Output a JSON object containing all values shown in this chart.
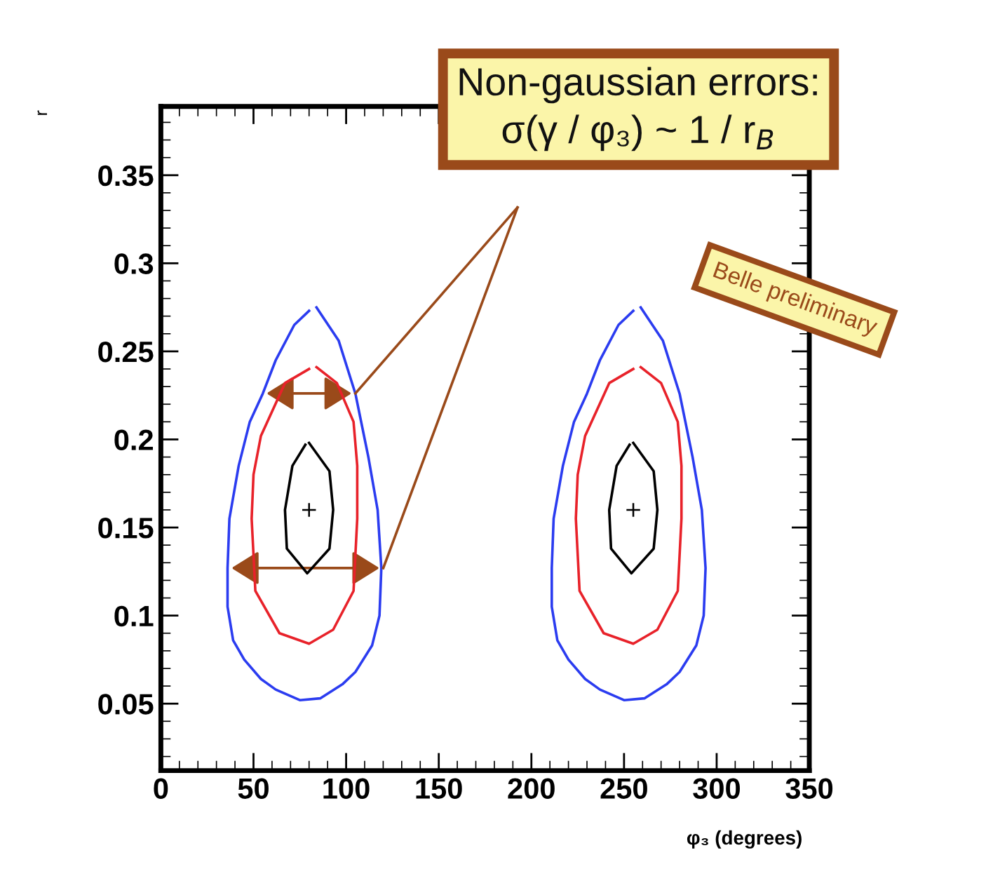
{
  "chart_data": {
    "type": "line",
    "xlabel": "φ₃ (degrees)",
    "ylabel": "r",
    "xlim": [
      0,
      350
    ],
    "ylim": [
      0.012,
      0.389
    ],
    "xticks": [
      0,
      50,
      100,
      150,
      200,
      250,
      300,
      350
    ],
    "yticks": [
      0.05,
      0.1,
      0.15,
      0.2,
      0.25,
      0.3,
      0.35
    ],
    "grid": false,
    "legend": false,
    "annotations": [
      "Non-gaussian errors:",
      "σ(γ / φ₃) ~ 1 / r$_{B}$",
      "Belle preliminary"
    ],
    "series": [
      {
        "color": "#2b3cf0",
        "x": [
          84,
          96,
          105,
          112,
          117,
          119,
          118,
          114,
          105,
          98,
          86,
          75,
          62,
          54,
          45,
          39,
          36,
          36,
          37,
          42,
          48,
          55,
          62,
          72,
          80
        ],
        "values": [
          0.275,
          0.256,
          0.226,
          0.19,
          0.16,
          0.127,
          0.1,
          0.083,
          0.068,
          0.061,
          0.053,
          0.052,
          0.058,
          0.064,
          0.075,
          0.086,
          0.105,
          0.127,
          0.155,
          0.185,
          0.21,
          0.226,
          0.245,
          0.265,
          0.273
        ]
      },
      {
        "color": "#e8222a",
        "x": [
          84,
          95,
          104,
          106,
          106,
          104,
          93,
          80,
          64,
          51,
          49,
          50,
          54,
          67,
          80
        ],
        "values": [
          0.241,
          0.232,
          0.21,
          0.185,
          0.155,
          0.114,
          0.092,
          0.084,
          0.09,
          0.114,
          0.155,
          0.18,
          0.202,
          0.232,
          0.24
        ]
      },
      {
        "color": "#000000",
        "x": [
          80,
          91,
          93,
          91,
          79,
          68,
          67,
          71,
          78
        ],
        "values": [
          0.198,
          0.182,
          0.16,
          0.138,
          0.124,
          0.138,
          0.16,
          0.185,
          0.197
        ]
      },
      {
        "color": "#2b3cf0",
        "x": [
          259,
          271,
          280,
          287,
          292,
          294,
          293,
          289,
          280,
          273,
          261,
          250,
          237,
          229,
          220,
          214,
          211,
          211,
          212,
          217,
          223,
          230,
          237,
          247,
          255
        ],
        "values": [
          0.275,
          0.256,
          0.226,
          0.19,
          0.16,
          0.127,
          0.1,
          0.083,
          0.068,
          0.061,
          0.053,
          0.052,
          0.058,
          0.064,
          0.075,
          0.086,
          0.105,
          0.127,
          0.155,
          0.185,
          0.21,
          0.226,
          0.245,
          0.265,
          0.273
        ]
      },
      {
        "color": "#e8222a",
        "x": [
          259,
          270,
          279,
          281,
          281,
          279,
          268,
          255,
          239,
          226,
          224,
          225,
          229,
          242,
          255
        ],
        "values": [
          0.241,
          0.232,
          0.21,
          0.185,
          0.155,
          0.114,
          0.092,
          0.084,
          0.09,
          0.114,
          0.155,
          0.18,
          0.202,
          0.232,
          0.24
        ]
      },
      {
        "color": "#000000",
        "x": [
          255,
          266,
          268,
          266,
          254,
          243,
          242,
          246,
          253
        ],
        "values": [
          0.198,
          0.182,
          0.16,
          0.138,
          0.124,
          0.138,
          0.16,
          0.185,
          0.197
        ]
      },
      {
        "type": "scatter",
        "marker": "cross",
        "color": "#000000",
        "x": [
          80,
          255
        ],
        "values": [
          0.16,
          0.16
        ]
      }
    ]
  }
}
